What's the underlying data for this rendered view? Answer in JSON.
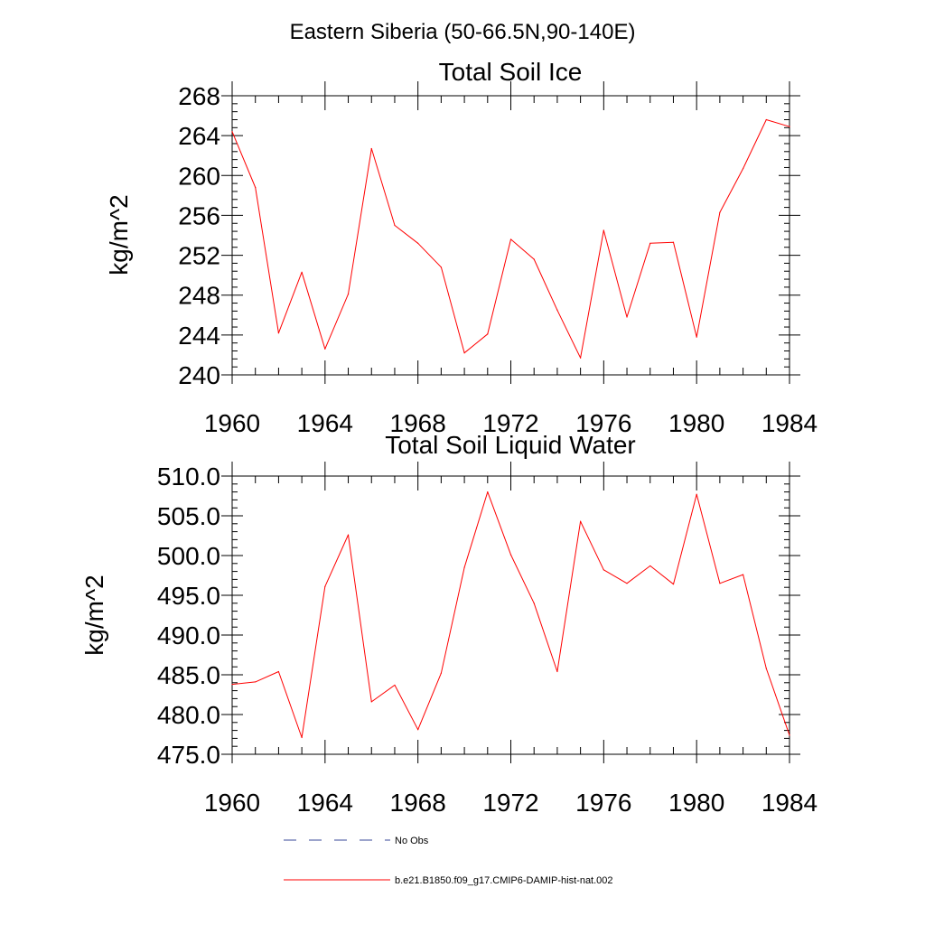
{
  "figure": {
    "title": "Eastern Siberia (50-66.5N,90-140E)"
  },
  "colors": {
    "series": "#ff0000",
    "no_obs": "#3a4a9a",
    "axis": "#000000"
  },
  "chart_data": [
    {
      "type": "line",
      "title": "Total Soil Ice",
      "xlabel": "",
      "ylabel": "kg/m^2",
      "xlim": [
        1960,
        1984
      ],
      "ylim": [
        240,
        268
      ],
      "xticks": [
        1960,
        1964,
        1968,
        1972,
        1976,
        1980,
        1984
      ],
      "xtick_labels": [
        "1960",
        "1964",
        "1968",
        "1972",
        "1976",
        "1980",
        "1984"
      ],
      "yticks": [
        240,
        244,
        248,
        252,
        256,
        260,
        264,
        268
      ],
      "ytick_labels": [
        "240",
        "244",
        "248",
        "252",
        "256",
        "260",
        "264",
        "268"
      ],
      "grid": false,
      "x": [
        1960,
        1961,
        1962,
        1963,
        1964,
        1965,
        1966,
        1967,
        1968,
        1969,
        1970,
        1971,
        1972,
        1973,
        1974,
        1975,
        1976,
        1977,
        1978,
        1979,
        1980,
        1981,
        1982,
        1983,
        1984
      ],
      "series": [
        {
          "name": "b.e21.B1850.f09_g17.CMIP6-DAMIP-hist-nat.002",
          "values": [
            264.4,
            258.8,
            244.2,
            250.3,
            242.6,
            248.1,
            262.7,
            255.0,
            253.2,
            250.8,
            242.2,
            244.1,
            253.6,
            251.6,
            246.5,
            241.7,
            254.5,
            245.8,
            253.2,
            253.3,
            243.8,
            256.3,
            260.7,
            265.6,
            264.9
          ]
        }
      ]
    },
    {
      "type": "line",
      "title": "Total Soil Liquid Water",
      "xlabel": "",
      "ylabel": "kg/m^2",
      "xlim": [
        1960,
        1984
      ],
      "ylim": [
        475.0,
        510.0
      ],
      "xticks": [
        1960,
        1964,
        1968,
        1972,
        1976,
        1980,
        1984
      ],
      "xtick_labels": [
        "1960",
        "1964",
        "1968",
        "1972",
        "1976",
        "1980",
        "1984"
      ],
      "yticks": [
        475.0,
        480.0,
        485.0,
        490.0,
        495.0,
        500.0,
        505.0,
        510.0
      ],
      "ytick_labels": [
        "475.0",
        "480.0",
        "485.0",
        "490.0",
        "495.0",
        "500.0",
        "505.0",
        "510.0"
      ],
      "grid": false,
      "x": [
        1960,
        1961,
        1962,
        1963,
        1964,
        1965,
        1966,
        1967,
        1968,
        1969,
        1970,
        1971,
        1972,
        1973,
        1974,
        1975,
        1976,
        1977,
        1978,
        1979,
        1980,
        1981,
        1982,
        1983,
        1984
      ],
      "series": [
        {
          "name": "b.e21.B1850.f09_g17.CMIP6-DAMIP-hist-nat.002",
          "values": [
            483.8,
            484.1,
            485.4,
            477.1,
            496.1,
            502.6,
            481.6,
            483.7,
            478.1,
            485.2,
            498.5,
            508.0,
            500.1,
            494.0,
            485.4,
            504.3,
            498.2,
            496.5,
            498.7,
            496.4,
            507.7,
            496.5,
            497.6,
            485.8,
            477.4
          ]
        }
      ]
    }
  ],
  "legend": {
    "placement": "bottom",
    "entries": [
      {
        "label": "No Obs",
        "style": "dashed",
        "color": "#3a4a9a"
      },
      {
        "label": "b.e21.B1850.f09_g17.CMIP6-DAMIP-hist-nat.002",
        "style": "solid",
        "color": "#ff0000"
      }
    ]
  }
}
